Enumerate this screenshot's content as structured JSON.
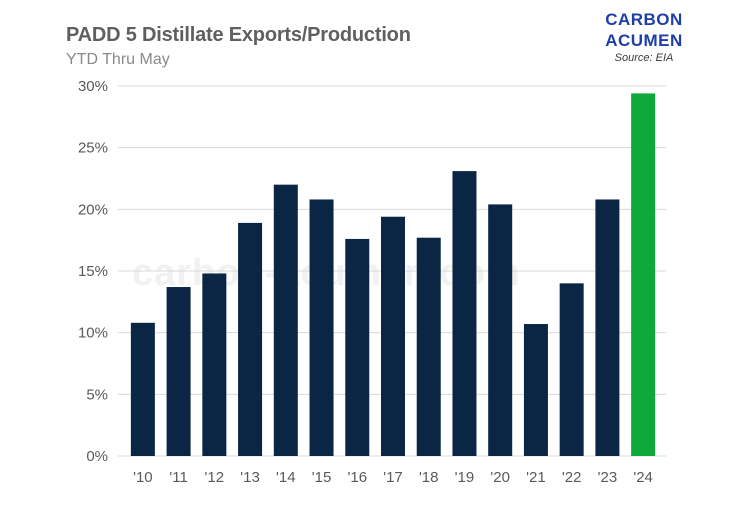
{
  "header": {
    "title": "PADD 5 Distillate Exports/Production",
    "subtitle": "YTD Thru May"
  },
  "brand": {
    "line1": "CARBON",
    "line2": "ACUMEN",
    "source": "Source: EIA"
  },
  "watermark": "carbon-acumen.com",
  "colors": {
    "bar": "#0b2545",
    "highlight": "#0fa83b",
    "grid": "#d9d9d9"
  },
  "chart_data": {
    "type": "bar",
    "title": "PADD 5 Distillate Exports/Production",
    "subtitle": "YTD Thru May",
    "xlabel": "",
    "ylabel": "",
    "categories": [
      "'10",
      "'11",
      "'12",
      "'13",
      "'14",
      "'15",
      "'16",
      "'17",
      "'18",
      "'19",
      "'20",
      "'21",
      "'22",
      "'23",
      "'24"
    ],
    "values": [
      10.8,
      13.7,
      14.8,
      18.9,
      22.0,
      20.8,
      17.6,
      19.4,
      17.7,
      23.1,
      20.4,
      10.7,
      14.0,
      20.8,
      29.4
    ],
    "unit": "%",
    "highlight_category": "'24",
    "ylim": [
      0,
      30
    ],
    "yticks": [
      0,
      5,
      10,
      15,
      20,
      25,
      30
    ],
    "ytick_labels": [
      "0%",
      "5%",
      "10%",
      "15%",
      "20%",
      "25%",
      "30%"
    ],
    "grid": true,
    "legend": "none"
  }
}
